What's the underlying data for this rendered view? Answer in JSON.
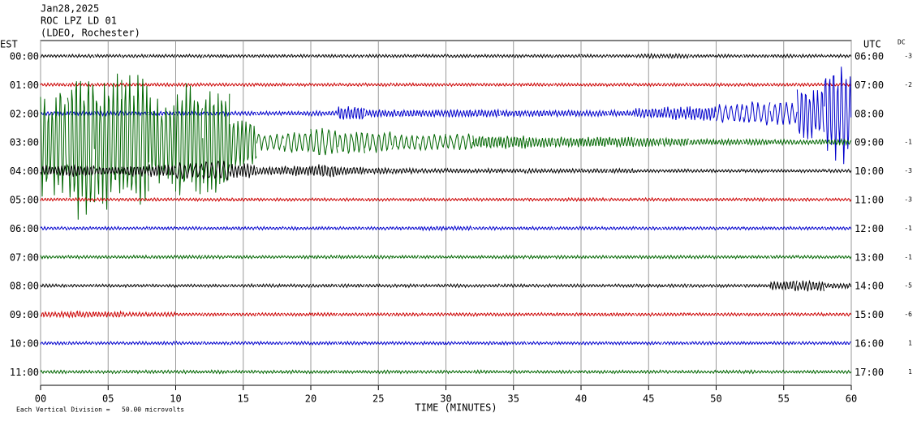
{
  "chart_data": {
    "type": "helicorder",
    "title_lines": [
      "Jan28,2025",
      "ROC LPZ LD 01",
      "(LDEO, Rochester)"
    ],
    "left_header": "EST",
    "right_header": "UTC",
    "dc_header": "DC",
    "xlabel": "TIME (MINUTES)",
    "footnote": "Each Vertical Division =   50.00 microvolts",
    "xlim": [
      0,
      60
    ],
    "xticks": [
      {
        "value": 0,
        "label": "00"
      },
      {
        "value": 5,
        "label": "05"
      },
      10,
      15,
      20,
      25,
      30,
      35,
      40,
      45,
      50,
      55,
      60
    ],
    "bin_minutes": 2,
    "rows": [
      {
        "est": "00:00",
        "utc": "06:00",
        "dc": -3,
        "color": "#000000",
        "values": [
          3,
          3,
          3,
          3,
          3,
          3,
          3,
          3,
          3,
          3,
          3,
          3,
          3,
          3,
          3,
          3,
          3,
          3,
          3,
          3,
          3,
          3,
          4,
          4,
          3,
          3,
          3,
          3,
          3,
          3
        ]
      },
      {
        "est": "01:00",
        "utc": "07:00",
        "dc": -2,
        "color": "#cc0000",
        "values": [
          3,
          3,
          3,
          3,
          3,
          3,
          3,
          3,
          3,
          3,
          3,
          3,
          3,
          3,
          3,
          3,
          3,
          3,
          3,
          3,
          3,
          3,
          3,
          3,
          3,
          3,
          3,
          3,
          3,
          3
        ]
      },
      {
        "est": "02:00",
        "utc": "08:00",
        "dc": null,
        "color": "#0000cc",
        "values": [
          4,
          4,
          4,
          4,
          4,
          4,
          4,
          4,
          4,
          4,
          5,
          14,
          7,
          7,
          7,
          7,
          7,
          6,
          6,
          6,
          6,
          6,
          10,
          12,
          14,
          18,
          22,
          20,
          50,
          90
        ]
      },
      {
        "est": "03:00",
        "utc": "09:00",
        "dc": -1,
        "color": "#006600",
        "values": [
          100,
          140,
          120,
          130,
          80,
          110,
          100,
          50,
          15,
          20,
          25,
          20,
          20,
          15,
          15,
          15,
          12,
          12,
          10,
          10,
          10,
          10,
          8,
          8,
          6,
          6,
          6,
          5,
          5,
          5
        ]
      },
      {
        "est": "04:00",
        "utc": "10:00",
        "dc": -3,
        "color": "#000000",
        "values": [
          10,
          12,
          8,
          10,
          12,
          15,
          18,
          14,
          8,
          10,
          12,
          8,
          6,
          5,
          4,
          4,
          4,
          4,
          4,
          4,
          4,
          4,
          3,
          3,
          3,
          3,
          3,
          3,
          3,
          3
        ]
      },
      {
        "est": "05:00",
        "utc": "11:00",
        "dc": -3,
        "color": "#cc0000",
        "values": [
          3,
          3,
          3,
          3,
          3,
          3,
          3,
          3,
          3,
          3,
          3,
          3,
          3,
          3,
          3,
          3,
          3,
          3,
          3,
          3,
          3,
          3,
          3,
          3,
          3,
          3,
          3,
          3,
          3,
          3
        ]
      },
      {
        "est": "06:00",
        "utc": "12:00",
        "dc": -1,
        "color": "#0000cc",
        "values": [
          3,
          3,
          3,
          3,
          3,
          3,
          3,
          3,
          3,
          3,
          3,
          3,
          3,
          3,
          4,
          4,
          3,
          3,
          3,
          3,
          3,
          3,
          3,
          3,
          3,
          3,
          3,
          3,
          3,
          3
        ]
      },
      {
        "est": "07:00",
        "utc": "13:00",
        "dc": -1,
        "color": "#006600",
        "values": [
          3,
          3,
          3,
          3,
          3,
          3,
          3,
          3,
          3,
          3,
          3,
          3,
          3,
          3,
          3,
          3,
          3,
          3,
          3,
          3,
          3,
          3,
          3,
          3,
          3,
          3,
          3,
          3,
          3,
          3
        ]
      },
      {
        "est": "08:00",
        "utc": "14:00",
        "dc": -5,
        "color": "#000000",
        "values": [
          3,
          3,
          3,
          3,
          3,
          3,
          3,
          3,
          3,
          3,
          3,
          3,
          3,
          3,
          3,
          3,
          3,
          3,
          3,
          3,
          3,
          3,
          3,
          3,
          3,
          3,
          3,
          10,
          10,
          5
        ]
      },
      {
        "est": "09:00",
        "utc": "15:00",
        "dc": -6,
        "color": "#cc0000",
        "values": [
          5,
          6,
          6,
          4,
          4,
          3,
          3,
          3,
          3,
          3,
          3,
          3,
          3,
          3,
          3,
          3,
          3,
          3,
          3,
          3,
          3,
          3,
          3,
          3,
          3,
          3,
          3,
          3,
          3,
          3
        ]
      },
      {
        "est": "10:00",
        "utc": "16:00",
        "dc": 1,
        "color": "#0000cc",
        "values": [
          3,
          3,
          3,
          3,
          3,
          3,
          3,
          3,
          3,
          3,
          3,
          3,
          3,
          3,
          3,
          3,
          3,
          3,
          3,
          3,
          3,
          3,
          3,
          3,
          3,
          3,
          3,
          3,
          3,
          3
        ]
      },
      {
        "est": "11:00",
        "utc": "17:00",
        "dc": 1,
        "color": "#006600",
        "values": [
          3,
          3,
          3,
          3,
          3,
          3,
          3,
          3,
          3,
          3,
          3,
          3,
          3,
          3,
          3,
          3,
          3,
          3,
          3,
          3,
          3,
          3,
          3,
          3,
          3,
          3,
          3,
          3,
          3,
          3
        ]
      }
    ]
  }
}
